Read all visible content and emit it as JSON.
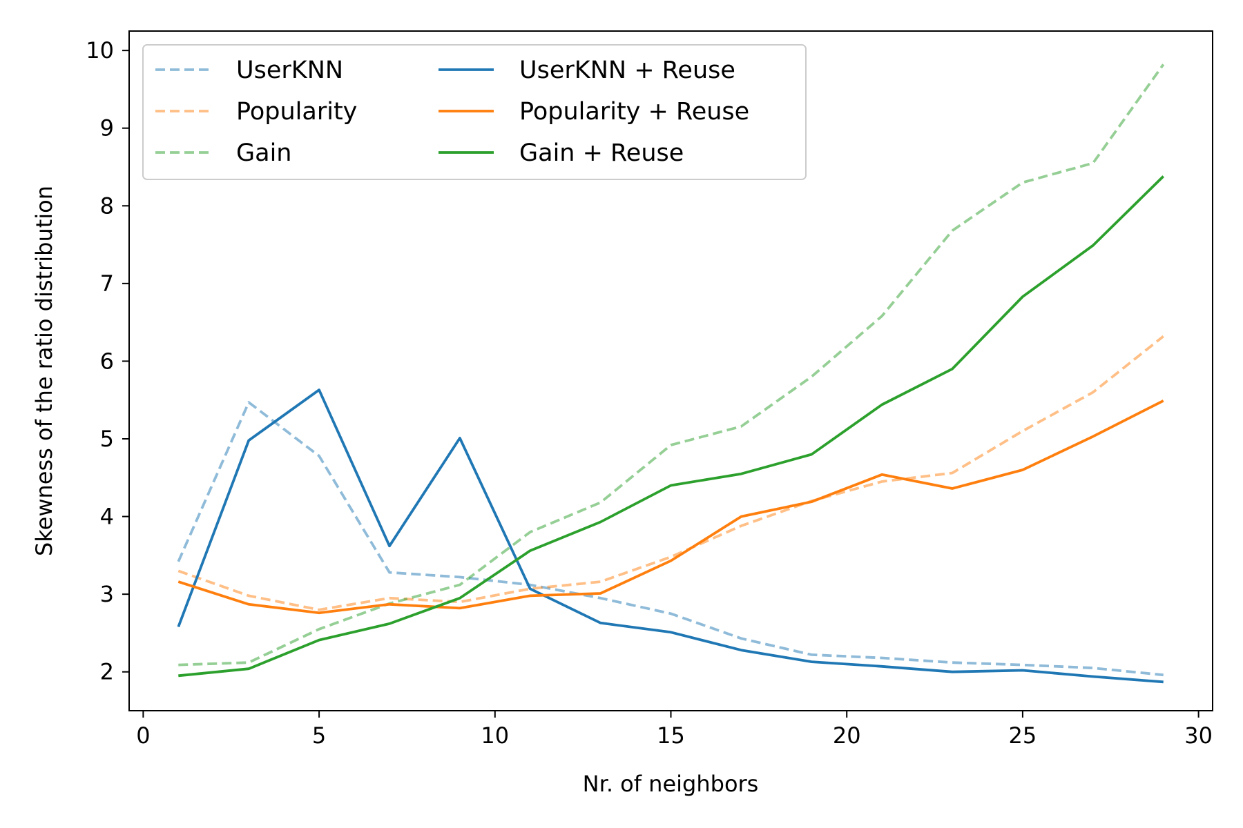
{
  "chart_data": {
    "type": "line",
    "title": "",
    "xlabel": "Nr. of neighbors",
    "ylabel": "Skewness of the ratio distribution",
    "xlim": [
      -0.4,
      30.4
    ],
    "ylim": [
      1.5,
      10.25
    ],
    "xticks": [
      0,
      5,
      10,
      15,
      20,
      25,
      30
    ],
    "yticks": [
      2,
      3,
      4,
      5,
      6,
      7,
      8,
      9,
      10
    ],
    "grid": false,
    "legend": {
      "placement": "top-left",
      "columns": 2
    },
    "x": [
      1,
      3,
      5,
      7,
      9,
      11,
      13,
      15,
      17,
      19,
      21,
      23,
      25,
      27,
      29
    ],
    "series": [
      {
        "name": "UserKNN",
        "color": "#1f77b4",
        "style": "dashed",
        "opacity": 0.5,
        "values": [
          3.42,
          5.47,
          4.78,
          3.28,
          3.22,
          3.12,
          2.95,
          2.75,
          2.43,
          2.22,
          2.18,
          2.12,
          2.09,
          2.05,
          1.96
        ]
      },
      {
        "name": "Popularity",
        "color": "#ff7f0e",
        "style": "dashed",
        "opacity": 0.5,
        "values": [
          3.3,
          2.98,
          2.8,
          2.95,
          2.9,
          3.07,
          3.16,
          3.48,
          3.88,
          4.2,
          4.45,
          4.56,
          5.1,
          5.6,
          6.32
        ]
      },
      {
        "name": "Gain",
        "color": "#2ca02c",
        "style": "dashed",
        "opacity": 0.5,
        "values": [
          2.09,
          2.12,
          2.55,
          2.88,
          3.12,
          3.8,
          4.18,
          4.92,
          5.16,
          5.8,
          6.58,
          7.68,
          8.3,
          8.55,
          9.82
        ]
      },
      {
        "name": "UserKNN + Reuse",
        "color": "#1f77b4",
        "style": "solid",
        "opacity": 1,
        "values": [
          2.58,
          4.98,
          5.63,
          3.62,
          5.01,
          3.07,
          2.63,
          2.51,
          2.28,
          2.13,
          2.07,
          2.0,
          2.02,
          1.94,
          1.87
        ]
      },
      {
        "name": "Popularity + Reuse",
        "color": "#ff7f0e",
        "style": "solid",
        "opacity": 1,
        "values": [
          3.16,
          2.87,
          2.76,
          2.87,
          2.82,
          2.98,
          3.01,
          3.43,
          4.0,
          4.19,
          4.54,
          4.36,
          4.6,
          5.03,
          5.49
        ]
      },
      {
        "name": "Gain + Reuse",
        "color": "#2ca02c",
        "style": "solid",
        "opacity": 1,
        "values": [
          1.95,
          2.04,
          2.41,
          2.62,
          2.95,
          3.56,
          3.93,
          4.4,
          4.55,
          4.8,
          5.44,
          5.9,
          6.83,
          7.49,
          8.38
        ]
      }
    ]
  }
}
